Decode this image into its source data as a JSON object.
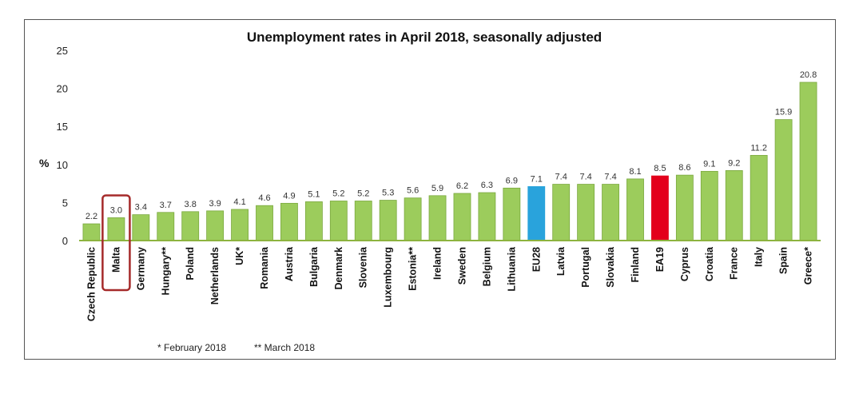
{
  "chart_data": {
    "type": "bar",
    "title": "Unemployment rates in April 2018, seasonally adjusted",
    "ylabel": "%",
    "xlabel": "",
    "ylim": [
      0,
      25
    ],
    "yticks": [
      "0",
      "5",
      "10",
      "15",
      "20",
      "25"
    ],
    "categories": [
      "Czech Republic",
      "Malta",
      "Germany",
      "Hungary**",
      "Poland",
      "Netherlands",
      "UK*",
      "Romania",
      "Austria",
      "Bulgaria",
      "Denmark",
      "Slovenia",
      "Luxembourg",
      "Estonia**",
      "Ireland",
      "Sweden",
      "Belgium",
      "Lithuania",
      "EU28",
      "Latvia",
      "Portugal",
      "Slovakia",
      "Finland",
      "EA19",
      "Cyprus",
      "Croatia",
      "France",
      "Italy",
      "Spain",
      "Greece*"
    ],
    "values": [
      2.2,
      3.0,
      3.4,
      3.7,
      3.8,
      3.9,
      4.1,
      4.6,
      4.9,
      5.1,
      5.2,
      5.2,
      5.3,
      5.6,
      5.9,
      6.2,
      6.3,
      6.9,
      7.1,
      7.4,
      7.4,
      7.4,
      8.1,
      8.5,
      8.6,
      9.1,
      9.2,
      11.2,
      15.9,
      20.8
    ],
    "value_labels": [
      "2.2",
      "3.0",
      "3.4",
      "3.7",
      "3.8",
      "3.9",
      "4.1",
      "4.6",
      "4.9",
      "5.1",
      "5.2",
      "5.2",
      "5.3",
      "5.6",
      "5.9",
      "6.2",
      "6.3",
      "6.9",
      "7.1",
      "7.4",
      "7.4",
      "7.4",
      "8.1",
      "8.5",
      "8.6",
      "9.1",
      "9.2",
      "11.2",
      "15.9",
      "20.8"
    ],
    "highlighted_category": "Malta",
    "colors": {
      "default": "#9ccc5c",
      "default_edge": "#7aa83e",
      "EU28": "#29a3dc",
      "EA19": "#e3001b",
      "highlight_box": "#a52a2a",
      "axis_line": "#8db33f"
    }
  },
  "footnotes": {
    "feb": "* February 2018",
    "mar": "** March 2018"
  }
}
